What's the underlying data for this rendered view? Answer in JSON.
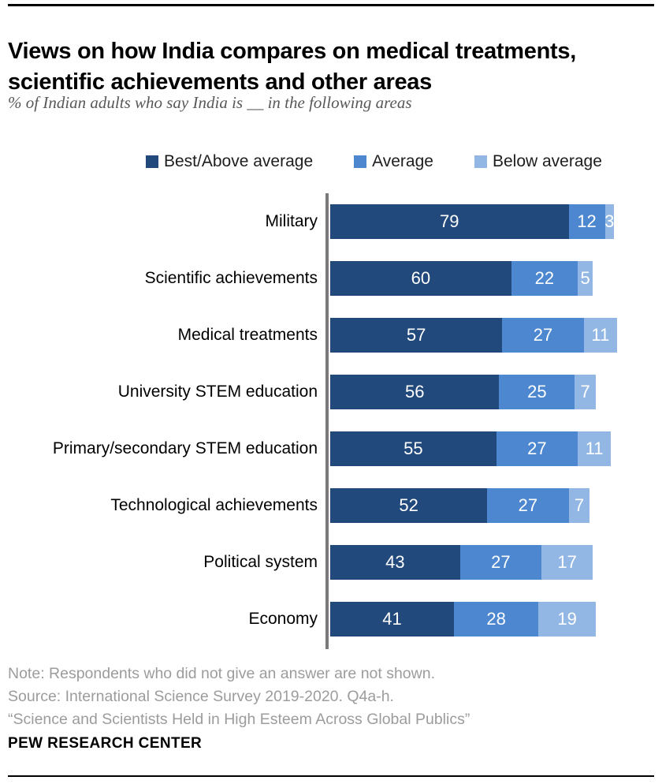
{
  "header": {
    "title_line1": "Views on how India compares on medical treatments,",
    "title_line2": "scientific achievements and other areas",
    "subtitle": "% of Indian adults who say India is __ in the following areas"
  },
  "legend": [
    {
      "label": "Best/Above average",
      "color": "#21497C"
    },
    {
      "label": "Average",
      "color": "#4C87D0"
    },
    {
      "label": "Below average",
      "color": "#92B7E4"
    }
  ],
  "chart_data": {
    "type": "bar",
    "orientation": "horizontal",
    "stacked": true,
    "unit": "percent",
    "xlim": [
      0,
      100
    ],
    "legend_position": "top",
    "grid": false,
    "value_labels": "inside, white",
    "categories": [
      "Military",
      "Scientific achievements",
      "Medical treatments",
      "University STEM education",
      "Primary/secondary STEM education",
      "Technological achievements",
      "Political system",
      "Economy"
    ],
    "series": [
      {
        "name": "Best/Above average",
        "color": "#21497C",
        "values": [
          79,
          60,
          57,
          56,
          55,
          52,
          43,
          41
        ]
      },
      {
        "name": "Average",
        "color": "#4C87D0",
        "values": [
          12,
          22,
          27,
          25,
          27,
          27,
          27,
          28
        ]
      },
      {
        "name": "Below average",
        "color": "#92B7E4",
        "values": [
          3,
          5,
          11,
          7,
          11,
          7,
          17,
          19
        ]
      }
    ],
    "axis_line_color": "#7a7a7a"
  },
  "notes": [
    "Note: Respondents who did not give an answer are not shown.",
    "Source: International Science Survey 2019-2020. Q4a-h.",
    "“Science and Scientists Held in High Esteem Across Global Publics”"
  ],
  "footer": {
    "brand": "PEW RESEARCH CENTER"
  }
}
